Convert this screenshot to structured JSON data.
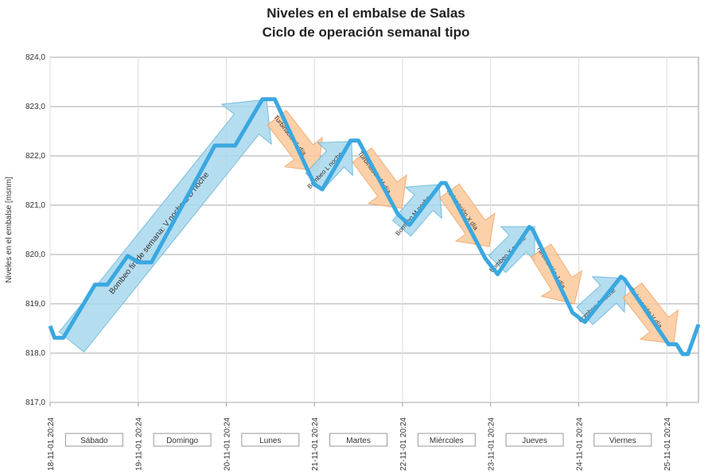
{
  "chart_data": {
    "type": "line",
    "title": "Niveles en el embalse de Salas",
    "subtitle": "Ciclo de operación semanal tipo",
    "y_label": "Niveles en el embalse [msnm]",
    "xlim": [
      0,
      7.36
    ],
    "xticks": [
      {
        "value": 0,
        "label": "18-11-01 20:24"
      },
      {
        "value": 1,
        "label": "19-11-01 20:24"
      },
      {
        "value": 2,
        "label": "20-11-01 20:24"
      },
      {
        "value": 3,
        "label": "21-11-01 20:24"
      },
      {
        "value": 4,
        "label": "22-11-01 20:24"
      },
      {
        "value": 5,
        "label": "23-11-01 20:24"
      },
      {
        "value": 6,
        "label": "24-11-01 20:24"
      },
      {
        "value": 7,
        "label": "25-11-01 20:24"
      }
    ],
    "day_labels": [
      "Sábado",
      "Domingo",
      "Lunes",
      "Martes",
      "Miércoles",
      "Jueves",
      "Viernes"
    ],
    "ylim": [
      817,
      824
    ],
    "yticks": [
      {
        "value": 817,
        "label": "817,0"
      },
      {
        "value": 818,
        "label": "818,0"
      },
      {
        "value": 819,
        "label": "819,0"
      },
      {
        "value": 820,
        "label": "820,0"
      },
      {
        "value": 821,
        "label": "821,0"
      },
      {
        "value": 822,
        "label": "822,0"
      },
      {
        "value": 823,
        "label": "823,0"
      },
      {
        "value": 824,
        "label": "824,0"
      }
    ],
    "grid": true,
    "series": [
      {
        "color": "#3aa8e0",
        "x": [
          0,
          0.05,
          0.15,
          0.51,
          0.65,
          0.88,
          1.01,
          1.15,
          1.87,
          2.1,
          2.41,
          2.55,
          3.0,
          3.09,
          3.41,
          3.5,
          3.95,
          4.08,
          4.44,
          4.49,
          4.94,
          5.08,
          5.44,
          5.48,
          5.93,
          6.07,
          6.48,
          6.52,
          7.02,
          7.11,
          7.18,
          7.24,
          7.36
        ],
        "values": [
          818.55,
          818.31,
          818.31,
          819.39,
          819.39,
          819.97,
          819.84,
          819.84,
          822.21,
          822.21,
          823.15,
          823.15,
          821.42,
          821.32,
          822.31,
          822.31,
          820.81,
          820.6,
          821.45,
          821.45,
          819.92,
          819.6,
          820.56,
          820.5,
          818.82,
          818.63,
          819.55,
          819.5,
          818.18,
          818.18,
          817.98,
          817.98,
          818.58
        ]
      }
    ],
    "annotations": [
      "Bombeo fin de semana: V noche a D noche",
      "Turbinación L día",
      "Bombeo L noche",
      "Turbinación M día",
      "Bombeo M noche",
      "Turbinación X día",
      "Bombeo X noche",
      "Turbinación J día",
      "Bombeo J noche",
      "Turbinación V día"
    ]
  }
}
